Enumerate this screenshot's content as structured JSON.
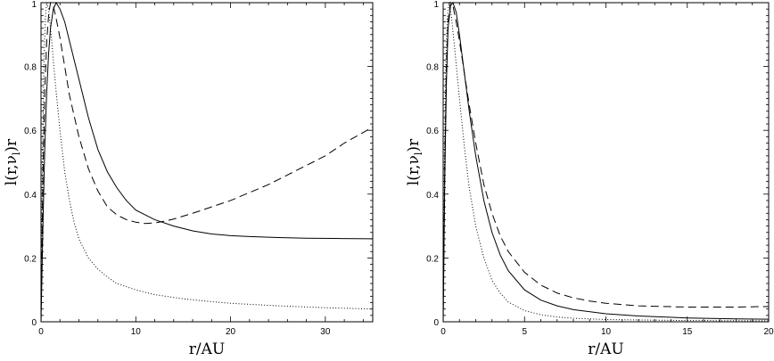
{
  "chart_data": [
    {
      "type": "line",
      "xlabel": "r/AU",
      "ylabel": "l(r,ν",
      "ylabel_subscript": "l",
      "ylabel_tail": ")r",
      "xlim": [
        0,
        35
      ],
      "ylim": [
        0,
        1
      ],
      "x_ticks": [
        0,
        10,
        20,
        30
      ],
      "y_ticks": [
        0,
        0.2,
        0.4,
        0.6,
        0.8,
        1
      ],
      "x_tick_labels": [
        "0",
        "10",
        "20",
        "30"
      ],
      "y_tick_labels": [
        "0",
        "0.2",
        "0.4",
        "0.6",
        "0.8",
        "1"
      ],
      "series": [
        {
          "style": "solid",
          "points": [
            [
              0,
              0
            ],
            [
              0.2,
              0.3
            ],
            [
              0.4,
              0.55
            ],
            [
              0.6,
              0.72
            ],
            [
              0.8,
              0.84
            ],
            [
              1,
              0.92
            ],
            [
              1.3,
              0.98
            ],
            [
              1.6,
              1.0
            ],
            [
              2,
              0.98
            ],
            [
              2.5,
              0.94
            ],
            [
              3,
              0.88
            ],
            [
              4,
              0.76
            ],
            [
              5,
              0.64
            ],
            [
              6,
              0.54
            ],
            [
              7,
              0.47
            ],
            [
              8,
              0.42
            ],
            [
              9,
              0.38
            ],
            [
              10,
              0.35
            ],
            [
              12,
              0.32
            ],
            [
              14,
              0.3
            ],
            [
              16,
              0.285
            ],
            [
              18,
              0.275
            ],
            [
              20,
              0.27
            ],
            [
              22,
              0.267
            ],
            [
              25,
              0.264
            ],
            [
              28,
              0.262
            ],
            [
              31,
              0.261
            ],
            [
              35,
              0.26
            ]
          ]
        },
        {
          "style": "dashed",
          "points": [
            [
              0,
              0
            ],
            [
              0.2,
              0.45
            ],
            [
              0.4,
              0.72
            ],
            [
              0.6,
              0.88
            ],
            [
              0.8,
              0.96
            ],
            [
              1,
              1.0
            ],
            [
              1.3,
              0.99
            ],
            [
              1.6,
              0.95
            ],
            [
              2,
              0.89
            ],
            [
              2.5,
              0.8
            ],
            [
              3,
              0.71
            ],
            [
              4,
              0.58
            ],
            [
              5,
              0.48
            ],
            [
              6,
              0.41
            ],
            [
              7,
              0.36
            ],
            [
              8,
              0.335
            ],
            [
              9,
              0.32
            ],
            [
              10,
              0.312
            ],
            [
              11,
              0.308
            ],
            [
              12,
              0.31
            ],
            [
              13,
              0.315
            ],
            [
              14,
              0.322
            ],
            [
              16,
              0.34
            ],
            [
              18,
              0.36
            ],
            [
              20,
              0.38
            ],
            [
              22,
              0.405
            ],
            [
              24,
              0.43
            ],
            [
              26,
              0.46
            ],
            [
              28,
              0.49
            ],
            [
              30,
              0.52
            ],
            [
              32,
              0.56
            ],
            [
              35,
              0.61
            ]
          ]
        },
        {
          "style": "dotted",
          "points": [
            [
              0,
              0
            ],
            [
              0.15,
              0.5
            ],
            [
              0.3,
              0.8
            ],
            [
              0.45,
              0.95
            ],
            [
              0.6,
              1.0
            ],
            [
              0.8,
              0.98
            ],
            [
              1,
              0.92
            ],
            [
              1.3,
              0.82
            ],
            [
              1.6,
              0.72
            ],
            [
              2,
              0.6
            ],
            [
              2.5,
              0.47
            ],
            [
              3,
              0.38
            ],
            [
              3.5,
              0.31
            ],
            [
              4,
              0.26
            ],
            [
              5,
              0.2
            ],
            [
              6,
              0.165
            ],
            [
              7,
              0.14
            ],
            [
              8,
              0.12
            ],
            [
              10,
              0.1
            ],
            [
              12,
              0.085
            ],
            [
              15,
              0.072
            ],
            [
              18,
              0.063
            ],
            [
              20,
              0.058
            ],
            [
              25,
              0.05
            ],
            [
              30,
              0.044
            ],
            [
              35,
              0.04
            ]
          ]
        }
      ]
    },
    {
      "type": "line",
      "xlabel": "r/AU",
      "ylabel": "l(r,ν",
      "ylabel_subscript": "l",
      "ylabel_tail": ")r",
      "xlim": [
        0,
        20
      ],
      "ylim": [
        0,
        1
      ],
      "x_ticks": [
        0,
        5,
        10,
        15,
        20
      ],
      "y_ticks": [
        0,
        0.2,
        0.4,
        0.6,
        0.8,
        1
      ],
      "x_tick_labels": [
        "0",
        "5",
        "10",
        "15",
        "20"
      ],
      "y_tick_labels": [
        "0",
        "0.2",
        "0.4",
        "0.6",
        "0.8",
        "1"
      ],
      "series": [
        {
          "style": "solid",
          "points": [
            [
              0,
              0
            ],
            [
              0.1,
              0.45
            ],
            [
              0.2,
              0.75
            ],
            [
              0.3,
              0.92
            ],
            [
              0.45,
              0.99
            ],
            [
              0.6,
              1.0
            ],
            [
              0.8,
              0.97
            ],
            [
              1,
              0.9
            ],
            [
              1.3,
              0.78
            ],
            [
              1.6,
              0.66
            ],
            [
              2,
              0.52
            ],
            [
              2.5,
              0.38
            ],
            [
              3,
              0.28
            ],
            [
              3.5,
              0.21
            ],
            [
              4,
              0.16
            ],
            [
              5,
              0.1
            ],
            [
              6,
              0.068
            ],
            [
              7,
              0.05
            ],
            [
              8,
              0.038
            ],
            [
              10,
              0.025
            ],
            [
              12,
              0.018
            ],
            [
              15,
              0.012
            ],
            [
              18,
              0.009
            ],
            [
              20,
              0.008
            ]
          ]
        },
        {
          "style": "dashed",
          "points": [
            [
              0,
              0
            ],
            [
              0.1,
              0.5
            ],
            [
              0.2,
              0.8
            ],
            [
              0.3,
              0.94
            ],
            [
              0.45,
              1.0
            ],
            [
              0.6,
              0.99
            ],
            [
              0.8,
              0.94
            ],
            [
              1,
              0.88
            ],
            [
              1.3,
              0.78
            ],
            [
              1.6,
              0.68
            ],
            [
              2,
              0.56
            ],
            [
              2.5,
              0.43
            ],
            [
              3,
              0.34
            ],
            [
              3.5,
              0.27
            ],
            [
              4,
              0.22
            ],
            [
              5,
              0.155
            ],
            [
              6,
              0.115
            ],
            [
              7,
              0.09
            ],
            [
              8,
              0.075
            ],
            [
              9,
              0.065
            ],
            [
              10,
              0.058
            ],
            [
              12,
              0.05
            ],
            [
              15,
              0.046
            ],
            [
              18,
              0.046
            ],
            [
              20,
              0.048
            ]
          ]
        },
        {
          "style": "dotted",
          "points": [
            [
              0,
              0
            ],
            [
              0.08,
              0.5
            ],
            [
              0.16,
              0.8
            ],
            [
              0.25,
              0.95
            ],
            [
              0.35,
              1.0
            ],
            [
              0.5,
              0.96
            ],
            [
              0.7,
              0.86
            ],
            [
              1,
              0.7
            ],
            [
              1.3,
              0.55
            ],
            [
              1.6,
              0.42
            ],
            [
              2,
              0.3
            ],
            [
              2.5,
              0.2
            ],
            [
              3,
              0.13
            ],
            [
              3.5,
              0.09
            ],
            [
              4,
              0.062
            ],
            [
              5,
              0.035
            ],
            [
              6,
              0.022
            ],
            [
              7,
              0.015
            ],
            [
              8,
              0.011
            ],
            [
              10,
              0.007
            ],
            [
              15,
              0.004
            ],
            [
              20,
              0.003
            ]
          ]
        }
      ]
    }
  ]
}
